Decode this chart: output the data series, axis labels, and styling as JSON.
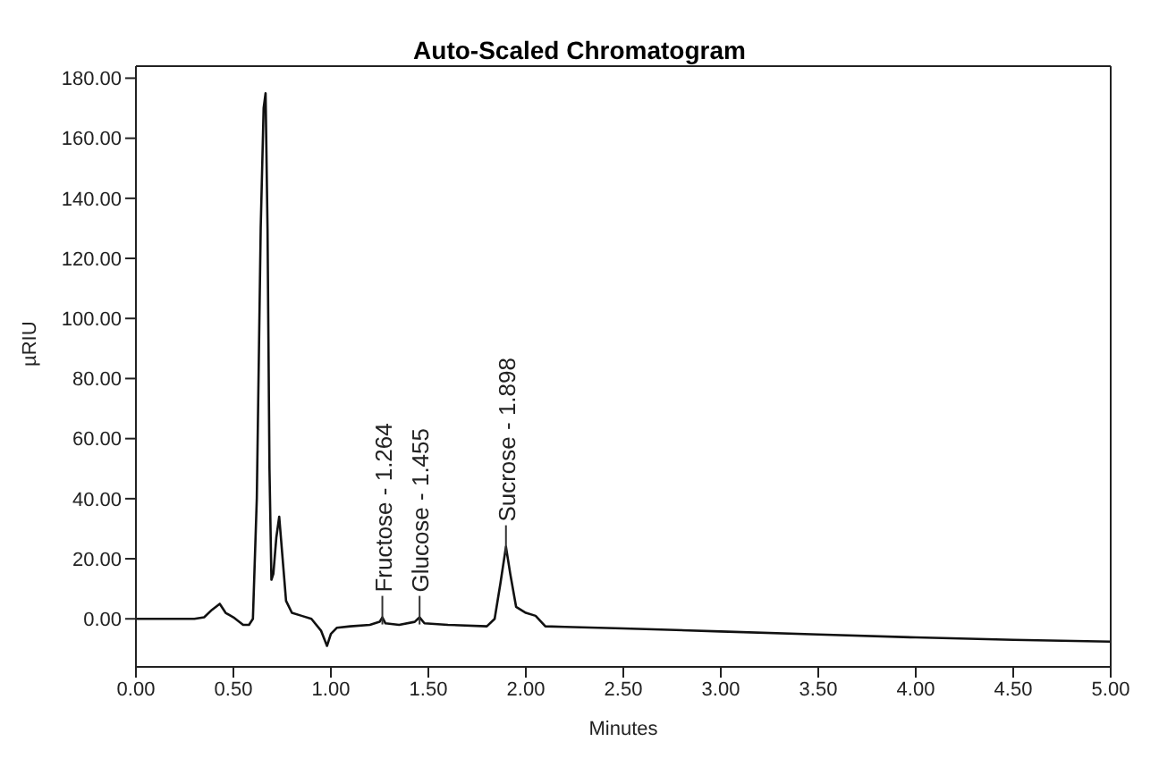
{
  "chart_data": {
    "type": "line",
    "title": "Auto-Scaled Chromatogram",
    "xlabel": "Minutes",
    "ylabel": "µRIU",
    "x": [
      0,
      0.1,
      0.2,
      0.3,
      0.35,
      0.39,
      0.43,
      0.46,
      0.5,
      0.55,
      0.58,
      0.6,
      0.62,
      0.64,
      0.655,
      0.665,
      0.675,
      0.685,
      0.695,
      0.705,
      0.72,
      0.735,
      0.75,
      0.77,
      0.8,
      0.85,
      0.9,
      0.95,
      0.98,
      1.0,
      1.03,
      1.1,
      1.2,
      1.25,
      1.264,
      1.28,
      1.35,
      1.43,
      1.455,
      1.48,
      1.6,
      1.8,
      1.84,
      1.87,
      1.898,
      1.92,
      1.95,
      2.0,
      2.05,
      2.1,
      2.2,
      2.5,
      3.0,
      3.5,
      4.0,
      4.5,
      5.0
    ],
    "series": [
      {
        "color": "#111111",
        "values": [
          0,
          0,
          0,
          0,
          0.5,
          3,
          5,
          2,
          0.5,
          -2,
          -2,
          0,
          40,
          130,
          170,
          175,
          130,
          50,
          13,
          15,
          27,
          34,
          22,
          6,
          2,
          1,
          0,
          -4,
          -9,
          -5,
          -3,
          -2.5,
          -2,
          -1,
          0.5,
          -1.5,
          -2,
          -1,
          0.5,
          -1.5,
          -2,
          -2.5,
          0,
          12,
          24,
          15,
          4,
          2,
          1,
          -2.5,
          -2.7,
          -3.2,
          -4.2,
          -5.2,
          -6.2,
          -7,
          -7.6
        ]
      }
    ],
    "xlim": [
      0,
      5
    ],
    "ylim": [
      -16,
      184
    ],
    "xticks": [
      {
        "value": 0,
        "label": "0.00"
      },
      {
        "value": 0.5,
        "label": "0.50"
      },
      {
        "value": 1,
        "label": "1.00"
      },
      {
        "value": 1.5,
        "label": "1.50"
      },
      {
        "value": 2,
        "label": "2.00"
      },
      {
        "value": 2.5,
        "label": "2.50"
      },
      {
        "value": 3,
        "label": "3.00"
      },
      {
        "value": 3.5,
        "label": "3.50"
      },
      {
        "value": 4,
        "label": "4.00"
      },
      {
        "value": 4.5,
        "label": "4.50"
      },
      {
        "value": 5,
        "label": "5.00"
      }
    ],
    "yticks": [
      {
        "value": 0,
        "label": "0.00"
      },
      {
        "value": 20,
        "label": "20.00"
      },
      {
        "value": 40,
        "label": "40.00"
      },
      {
        "value": 60,
        "label": "60.00"
      },
      {
        "value": 80,
        "label": "80.00"
      },
      {
        "value": 100,
        "label": "100.00"
      },
      {
        "value": 120,
        "label": "120.00"
      },
      {
        "value": 140,
        "label": "140.00"
      },
      {
        "value": 160,
        "label": "160.00"
      },
      {
        "value": 180,
        "label": "180.00"
      }
    ],
    "annotations": [
      {
        "text": "Fructose - 1.264",
        "x": 1.264,
        "y": 0.5
      },
      {
        "text": "Glucose - 1.455",
        "x": 1.455,
        "y": 0.5
      },
      {
        "text": "Sucrose - 1.898",
        "x": 1.898,
        "y": 24
      }
    ],
    "grid": false,
    "legend": false,
    "marker": "none",
    "line_style": "solid"
  }
}
